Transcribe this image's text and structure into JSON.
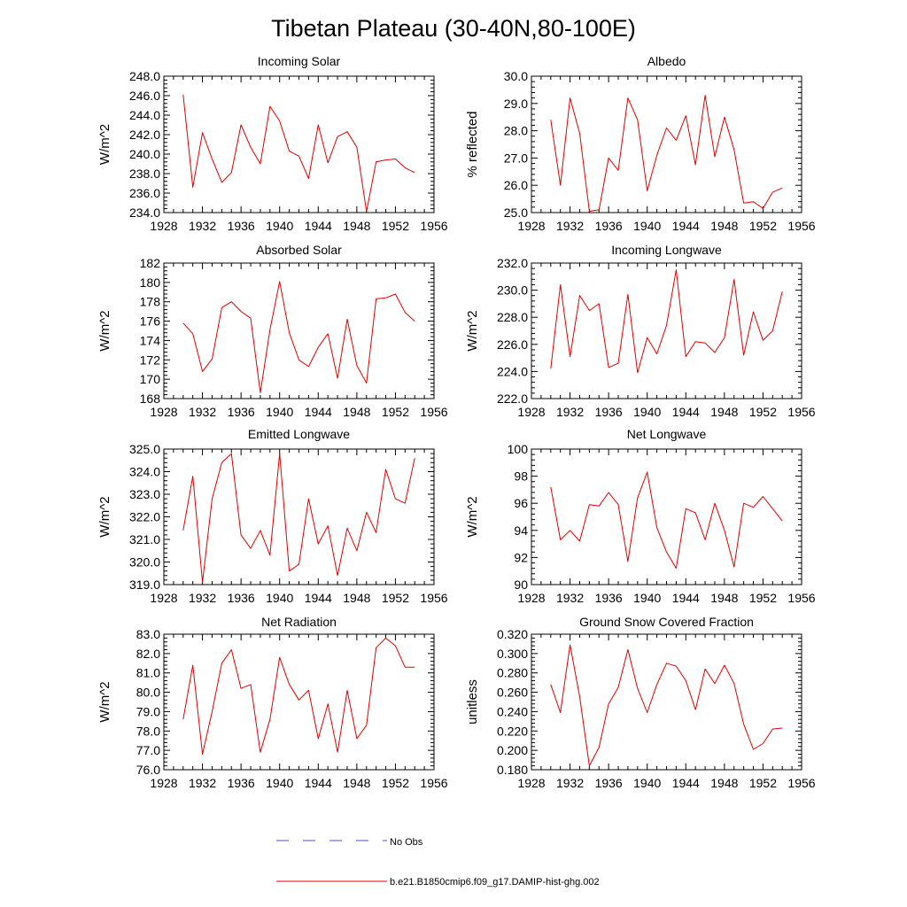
{
  "page": {
    "title": "Tibetan Plateau (30-40N,80-100E)"
  },
  "x_tick_labels": [
    "1928",
    "1932",
    "1936",
    "1940",
    "1944",
    "1948",
    "1952",
    "1956"
  ],
  "legend": {
    "items": [
      {
        "label": "No Obs",
        "color": "#4d4dcc",
        "style": "dashed"
      },
      {
        "label": "b.e21.B1850cmip6.f09_g17.DAMIP-hist-ghg.002",
        "color": "#e00000",
        "style": "solid"
      }
    ]
  },
  "chart_data": [
    {
      "type": "line",
      "title": "Incoming Solar",
      "ylabel": "W/m^2",
      "xlim": [
        1928,
        1956
      ],
      "ylim": [
        234,
        248
      ],
      "ystep": 2,
      "ydecimals": 1,
      "yticks": [
        "234.0",
        "236.0",
        "238.0",
        "240.0",
        "242.0",
        "244.0",
        "246.0",
        "248.0"
      ],
      "series": [
        {
          "color": "#e00000",
          "x": [
            1930,
            1931,
            1932,
            1933,
            1934,
            1935,
            1936,
            1937,
            1938,
            1939,
            1940,
            1941,
            1942,
            1943,
            1944,
            1945,
            1946,
            1947,
            1948,
            1949,
            1950,
            1951,
            1952,
            1953,
            1954
          ],
          "values": [
            246.1,
            236.6,
            242.2,
            239.5,
            237.1,
            238.1,
            243.0,
            240.7,
            239.0,
            244.9,
            243.4,
            240.3,
            239.8,
            237.5,
            243.0,
            239.1,
            241.8,
            242.3,
            240.7,
            234.1,
            239.2,
            239.4,
            239.5,
            238.6,
            238.1
          ]
        }
      ]
    },
    {
      "type": "line",
      "title": "Albedo",
      "ylabel": "% reflected",
      "xlim": [
        1928,
        1956
      ],
      "ylim": [
        25,
        30
      ],
      "ystep": 1,
      "ydecimals": 1,
      "yticks": [
        "25.0",
        "26.0",
        "27.0",
        "28.0",
        "29.0",
        "30.0"
      ],
      "series": [
        {
          "color": "#e00000",
          "x": [
            1930,
            1931,
            1932,
            1933,
            1934,
            1935,
            1936,
            1937,
            1938,
            1939,
            1940,
            1941,
            1942,
            1943,
            1944,
            1945,
            1946,
            1947,
            1948,
            1949,
            1950,
            1951,
            1952,
            1953,
            1954
          ],
          "values": [
            28.4,
            26.0,
            29.2,
            27.9,
            25.05,
            25.1,
            27.0,
            26.55,
            29.2,
            28.4,
            25.8,
            27.1,
            28.1,
            27.65,
            28.55,
            26.75,
            29.3,
            27.05,
            28.5,
            27.3,
            25.35,
            25.4,
            25.15,
            25.75,
            25.9
          ]
        }
      ]
    },
    {
      "type": "line",
      "title": "Absorbed Solar",
      "ylabel": "W/m^2",
      "xlim": [
        1928,
        1956
      ],
      "ylim": [
        168,
        182
      ],
      "ystep": 2,
      "ydecimals": 0,
      "yticks": [
        "168",
        "170",
        "172",
        "174",
        "176",
        "178",
        "180",
        "182"
      ],
      "series": [
        {
          "color": "#e00000",
          "x": [
            1930,
            1931,
            1932,
            1933,
            1934,
            1935,
            1936,
            1937,
            1938,
            1939,
            1940,
            1941,
            1942,
            1943,
            1944,
            1945,
            1946,
            1947,
            1948,
            1949,
            1950,
            1951,
            1952,
            1953,
            1954
          ],
          "values": [
            175.8,
            174.7,
            170.8,
            172.1,
            177.4,
            178.0,
            177.0,
            176.3,
            168.6,
            175.1,
            180.1,
            174.8,
            172.0,
            171.3,
            173.3,
            174.7,
            170.1,
            176.2,
            171.4,
            169.6,
            178.3,
            178.4,
            178.8,
            176.9,
            176.0
          ]
        }
      ]
    },
    {
      "type": "line",
      "title": "Incoming Longwave",
      "ylabel": "W/m^2",
      "xlim": [
        1928,
        1956
      ],
      "ylim": [
        222,
        232
      ],
      "ystep": 2,
      "ydecimals": 1,
      "yticks": [
        "222.0",
        "224.0",
        "226.0",
        "228.0",
        "230.0",
        "232.0"
      ],
      "series": [
        {
          "color": "#e00000",
          "x": [
            1930,
            1931,
            1932,
            1933,
            1934,
            1935,
            1936,
            1937,
            1938,
            1939,
            1940,
            1941,
            1942,
            1943,
            1944,
            1945,
            1946,
            1947,
            1948,
            1949,
            1950,
            1951,
            1952,
            1953,
            1954
          ],
          "values": [
            224.2,
            230.4,
            225.1,
            229.6,
            228.5,
            229.0,
            224.3,
            224.6,
            229.7,
            223.9,
            226.5,
            225.3,
            227.4,
            231.5,
            225.1,
            226.2,
            226.1,
            225.4,
            226.5,
            230.8,
            225.2,
            228.4,
            226.3,
            227.0,
            229.9
          ]
        }
      ]
    },
    {
      "type": "line",
      "title": "Emitted Longwave",
      "ylabel": "W/m^2",
      "xlim": [
        1928,
        1956
      ],
      "ylim": [
        319,
        325
      ],
      "ystep": 1,
      "ydecimals": 1,
      "yticks": [
        "319.0",
        "320.0",
        "321.0",
        "322.0",
        "323.0",
        "324.0",
        "325.0"
      ],
      "series": [
        {
          "color": "#e00000",
          "x": [
            1930,
            1931,
            1932,
            1933,
            1934,
            1935,
            1936,
            1937,
            1938,
            1939,
            1940,
            1941,
            1942,
            1943,
            1944,
            1945,
            1946,
            1947,
            1948,
            1949,
            1950,
            1951,
            1952,
            1953,
            1954
          ],
          "values": [
            321.4,
            323.8,
            319.1,
            322.8,
            324.4,
            324.8,
            321.2,
            320.6,
            321.4,
            320.3,
            324.8,
            319.6,
            319.9,
            322.8,
            320.8,
            321.6,
            319.4,
            321.5,
            320.5,
            322.2,
            321.3,
            324.1,
            322.8,
            322.6,
            324.6
          ]
        }
      ]
    },
    {
      "type": "line",
      "title": "Net Longwave",
      "ylabel": "W/m^2",
      "xlim": [
        1928,
        1956
      ],
      "ylim": [
        90,
        100
      ],
      "ystep": 2,
      "ydecimals": 0,
      "yticks": [
        "90",
        "92",
        "94",
        "96",
        "98",
        "100"
      ],
      "series": [
        {
          "color": "#e00000",
          "x": [
            1930,
            1931,
            1932,
            1933,
            1934,
            1935,
            1936,
            1937,
            1938,
            1939,
            1940,
            1941,
            1942,
            1943,
            1944,
            1945,
            1946,
            1947,
            1948,
            1949,
            1950,
            1951,
            1952,
            1953,
            1954
          ],
          "values": [
            97.2,
            93.3,
            94.0,
            93.2,
            95.9,
            95.8,
            96.8,
            95.9,
            91.7,
            96.4,
            98.3,
            94.2,
            92.4,
            91.2,
            95.6,
            95.3,
            93.3,
            96.0,
            94.0,
            91.3,
            96.0,
            95.7,
            96.5,
            95.6,
            94.7
          ]
        }
      ]
    },
    {
      "type": "line",
      "title": "Net Radiation",
      "ylabel": "W/m^2",
      "xlim": [
        1928,
        1956
      ],
      "ylim": [
        76,
        83
      ],
      "ystep": 1,
      "ydecimals": 1,
      "yticks": [
        "76.0",
        "77.0",
        "78.0",
        "79.0",
        "80.0",
        "81.0",
        "82.0",
        "83.0"
      ],
      "series": [
        {
          "color": "#e00000",
          "x": [
            1930,
            1931,
            1932,
            1933,
            1934,
            1935,
            1936,
            1937,
            1938,
            1939,
            1940,
            1941,
            1942,
            1943,
            1944,
            1945,
            1946,
            1947,
            1948,
            1949,
            1950,
            1951,
            1952,
            1953,
            1954
          ],
          "values": [
            78.6,
            81.4,
            76.8,
            79.0,
            81.5,
            82.2,
            80.2,
            80.4,
            76.9,
            78.6,
            81.8,
            80.4,
            79.6,
            80.1,
            77.6,
            79.4,
            76.9,
            80.1,
            77.6,
            78.3,
            82.3,
            82.8,
            82.4,
            81.3,
            81.3
          ]
        }
      ]
    },
    {
      "type": "line",
      "title": "Ground Snow Covered Fraction",
      "ylabel": "unitless",
      "xlim": [
        1928,
        1956
      ],
      "ylim": [
        0.18,
        0.32
      ],
      "ystep": 0.02,
      "ydecimals": 3,
      "yticks": [
        "0.180",
        "0.200",
        "0.220",
        "0.240",
        "0.260",
        "0.280",
        "0.300",
        "0.320"
      ],
      "series": [
        {
          "color": "#e00000",
          "x": [
            1930,
            1931,
            1932,
            1933,
            1934,
            1935,
            1936,
            1937,
            1938,
            1939,
            1940,
            1941,
            1942,
            1943,
            1944,
            1945,
            1946,
            1947,
            1948,
            1949,
            1950,
            1951,
            1952,
            1953,
            1954
          ],
          "values": [
            0.268,
            0.239,
            0.309,
            0.255,
            0.184,
            0.203,
            0.248,
            0.265,
            0.304,
            0.264,
            0.239,
            0.268,
            0.29,
            0.287,
            0.272,
            0.242,
            0.284,
            0.269,
            0.288,
            0.269,
            0.227,
            0.201,
            0.207,
            0.222,
            0.223
          ]
        }
      ]
    }
  ]
}
